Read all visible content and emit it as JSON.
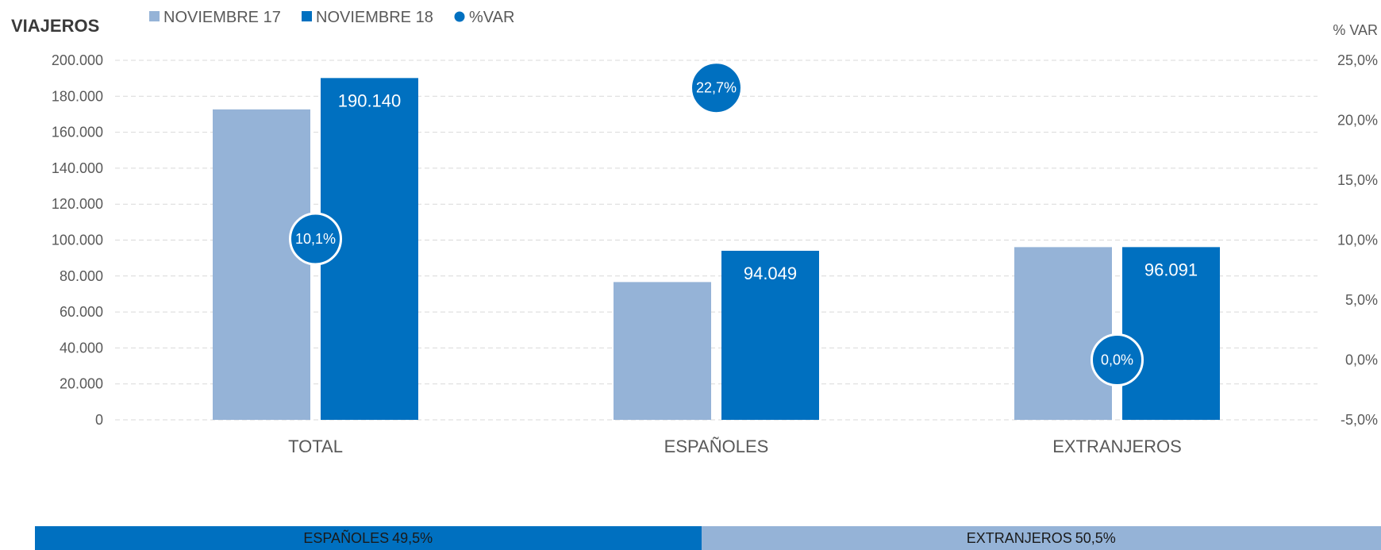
{
  "colors": {
    "nov17": "#95b3d7",
    "nov18": "#0070c0",
    "var": "#0070c0",
    "grid": "#d9d9d9"
  },
  "chart_data": {
    "type": "bar",
    "title": "",
    "ylabel": "VIAJEROS",
    "y2label": "% VAR",
    "ylim": [
      0,
      200000
    ],
    "y2lim": [
      -5,
      25
    ],
    "yticks": [
      "0",
      "20.000",
      "40.000",
      "60.000",
      "80.000",
      "100.000",
      "120.000",
      "140.000",
      "160.000",
      "180.000",
      "200.000"
    ],
    "y2ticks": [
      "-5,0%",
      "0,0%",
      "5,0%",
      "10,0%",
      "15,0%",
      "20,0%",
      "25,0%"
    ],
    "categories": [
      "TOTAL",
      "ESPAÑOLES",
      "EXTRANJEROS"
    ],
    "legend_position": "top-left",
    "grid": true,
    "series": [
      {
        "name": "NOVIEMBRE 17",
        "values": [
          172700,
          76650,
          96080
        ],
        "labels": [
          "",
          "",
          ""
        ]
      },
      {
        "name": "NOVIEMBRE 18",
        "values": [
          190140,
          94049,
          96091
        ],
        "labels": [
          "190.140",
          "94.049",
          "96.091"
        ]
      },
      {
        "name": "%VAR",
        "values": [
          10.1,
          22.7,
          0.0
        ],
        "labels": [
          "10,1%",
          "22,7%",
          "0,0%"
        ]
      }
    ]
  },
  "share_bar": [
    {
      "label": "ESPAÑOLES",
      "value": "49,5%",
      "fraction": 0.495
    },
    {
      "label": "EXTRANJEROS",
      "value": "50,5%",
      "fraction": 0.505
    }
  ]
}
